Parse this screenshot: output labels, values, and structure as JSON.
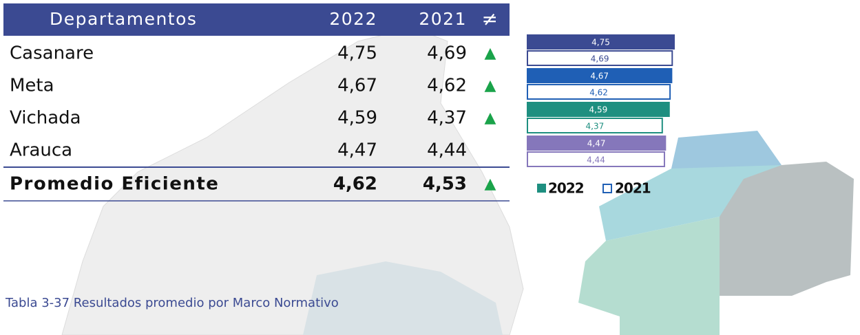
{
  "table": {
    "header": [
      "Departamentos",
      "2022",
      "2021",
      "≠"
    ],
    "rows": [
      [
        "Casanare",
        "4,75",
        "4,69",
        "▲"
      ],
      [
        "Meta",
        "4,67",
        "4,62",
        "▲"
      ],
      [
        "Vichada",
        "4,59",
        "4,37",
        "▲"
      ],
      [
        "Arauca",
        "4,47",
        "4,44"
      ]
    ],
    "footer": [
      "Promedio Eficiente",
      "4,62",
      "4,53",
      "▲"
    ]
  },
  "caption": "Tabla 3-37 Resultados promedio por Marco Normativo",
  "chart_data": {
    "type": "bar",
    "orientation": "horizontal",
    "colors": [
      "#3b4a92",
      "#1f5fb5",
      "#1e8f80",
      "#8577bb"
    ],
    "series": [
      {
        "name": "2022",
        "color": "#1e8f80",
        "values": [
          4.75,
          4.67,
          4.59,
          4.47
        ],
        "value_labels": [
          "4,75",
          "4,67",
          "4,59",
          "4,47"
        ]
      },
      {
        "name": "2021",
        "color": "#1f5fb5",
        "values": [
          4.69,
          4.62,
          4.37,
          4.44
        ],
        "value_labels": [
          "4,69",
          "4,62",
          "4,37",
          "4,44"
        ]
      }
    ]
  }
}
